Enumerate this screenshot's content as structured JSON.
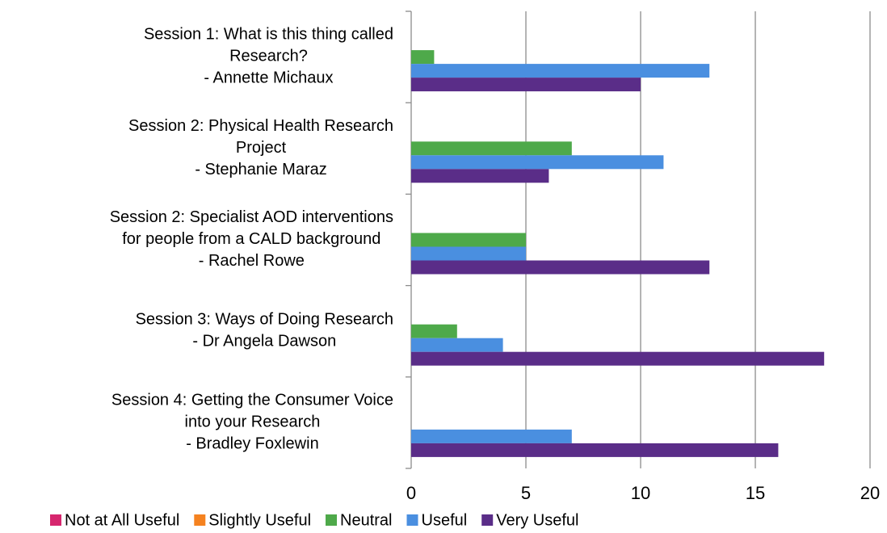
{
  "chart_data": {
    "type": "bar",
    "orientation": "horizontal",
    "categories": [
      "Session 1:  What is this thing called\nResearch?\n- Annette Michaux",
      "Session 2:  Physical Health Research\nProject\n- Stephanie Maraz",
      "Session 2:  Specialist AOD interventions\nfor people from a CALD background\n- Rachel Rowe",
      "Session 3:  Ways of Doing Research\n- Dr Angela Dawson",
      "Session 4:  Getting the Consumer Voice\ninto your Research\n- Bradley Foxlewin"
    ],
    "series": [
      {
        "name": "Not at All Useful",
        "color": "#d6266e",
        "values": [
          0,
          0,
          0,
          0,
          0
        ]
      },
      {
        "name": "Slightly Useful",
        "color": "#f58220",
        "values": [
          0,
          0,
          0,
          0,
          0
        ]
      },
      {
        "name": "Neutral",
        "color": "#4ea94a",
        "values": [
          1,
          7,
          5,
          2,
          0
        ]
      },
      {
        "name": "Useful",
        "color": "#4a8fe0",
        "values": [
          13,
          11,
          5,
          4,
          7
        ]
      },
      {
        "name": "Very Useful",
        "color": "#5a2d88",
        "values": [
          10,
          6,
          13,
          18,
          16
        ]
      }
    ],
    "xlim": [
      0,
      20
    ],
    "xticks": [
      0,
      5,
      10,
      15,
      20
    ],
    "grid": true,
    "legend": "bottom"
  }
}
